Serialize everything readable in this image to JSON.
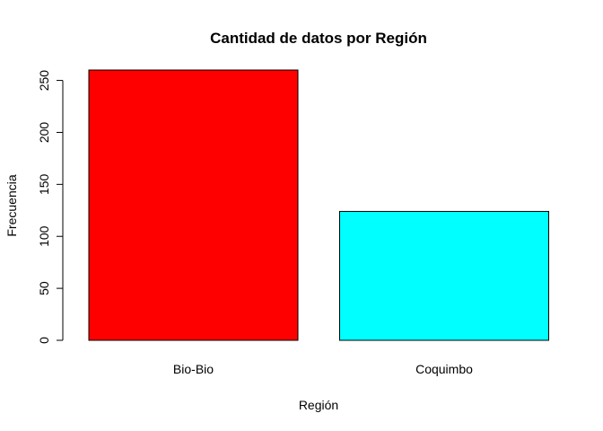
{
  "chart_data": {
    "type": "bar",
    "title": "Cantidad de datos por Región",
    "xlabel": "Región",
    "ylabel": "Frecuencia",
    "categories": [
      "Bio-Bio",
      "Coquimbo"
    ],
    "values": [
      260,
      124
    ],
    "colors": [
      "#ff0000",
      "#00ffff"
    ],
    "ylim": [
      0,
      260
    ],
    "yticks": [
      0,
      50,
      100,
      150,
      200,
      250
    ],
    "grid": false,
    "legend": "none"
  }
}
